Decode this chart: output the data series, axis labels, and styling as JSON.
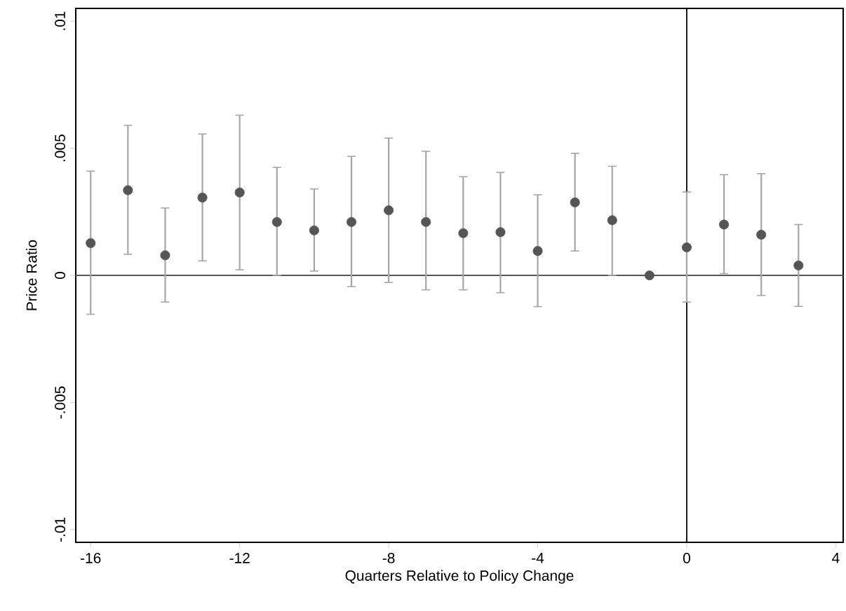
{
  "chart_data": {
    "type": "scatter",
    "xlabel": "Quarters Relative to Policy Change",
    "ylabel": "Price Ratio",
    "x": [
      -16,
      -15,
      -14,
      -13,
      -12,
      -11,
      -10,
      -9,
      -8,
      -7,
      -6,
      -5,
      -4,
      -3,
      -2,
      -1,
      0,
      1,
      2,
      3
    ],
    "values": [
      0.00127,
      0.00335,
      0.00079,
      0.00306,
      0.00326,
      0.0021,
      0.00177,
      0.0021,
      0.00256,
      0.0021,
      0.00166,
      0.0017,
      0.00096,
      0.00287,
      0.00217,
      0,
      0.0011,
      0.002,
      0.0016,
      0.00039
    ],
    "errors": [
      [
        -0.00153,
        0.0041
      ],
      [
        0.00083,
        0.0059
      ],
      [
        -0.00105,
        0.00265
      ],
      [
        0.00057,
        0.00556
      ],
      [
        0.00022,
        0.0063
      ],
      [
        0,
        0.00425
      ],
      [
        0.00017,
        0.0034
      ],
      [
        -0.00044,
        0.00468
      ],
      [
        -0.00028,
        0.0054
      ],
      [
        -0.00057,
        0.00488
      ],
      [
        -0.00057,
        0.00388
      ],
      [
        -0.00068,
        0.00405
      ],
      [
        -0.00123,
        0.00317
      ],
      [
        0.00096,
        0.0048
      ],
      [
        0,
        0.00429
      ],
      null,
      [
        -0.00105,
        0.00328
      ],
      [
        7e-05,
        0.00396
      ],
      [
        -0.00079,
        0.004
      ],
      [
        -0.00122,
        0.002
      ]
    ],
    "color": "#555555",
    "marker": "circle",
    "xlim": [
      -16.4,
      4.2
    ],
    "ylim": [
      -0.0105,
      0.0105
    ],
    "xticks": [
      -16,
      -12,
      -8,
      -4,
      0,
      4
    ],
    "yticks": [
      {
        "value": -0.01,
        "label": "-.01"
      },
      {
        "value": -0.005,
        "label": "-.005"
      },
      {
        "value": 0,
        "label": "0"
      },
      {
        "value": 0.005,
        "label": ".005"
      },
      {
        "value": 0.01,
        "label": ".01"
      }
    ],
    "ref_lines": [
      {
        "axis": "y",
        "value": 0,
        "color": "#555555"
      },
      {
        "axis": "x",
        "value": 0,
        "color": "#000000"
      }
    ]
  }
}
